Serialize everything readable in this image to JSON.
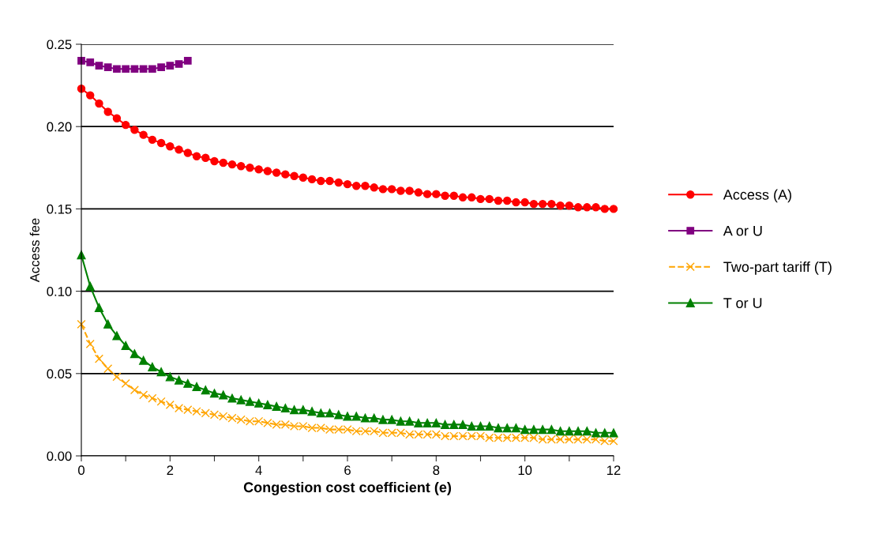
{
  "chart_data": {
    "type": "line",
    "xlabel": "Congestion cost coefficient (e)",
    "ylabel": "Access fee",
    "xlim": [
      0,
      12
    ],
    "xticks": [
      0,
      {
        "value": 1,
        "label": null
      },
      2,
      {
        "value": 3,
        "label": null
      },
      4,
      {
        "value": 5,
        "label": null
      },
      6,
      {
        "value": 7,
        "label": null
      },
      8,
      {
        "value": 9,
        "label": null
      },
      10,
      {
        "value": 11,
        "label": null
      },
      12
    ],
    "ylim": [
      0,
      0.25
    ],
    "yticks": [
      {
        "value": 0,
        "label": "0.00"
      },
      {
        "value": 0.05,
        "label": "0.05"
      },
      {
        "value": 0.1,
        "label": "0.10"
      },
      {
        "value": 0.15,
        "label": "0.15"
      },
      {
        "value": 0.2,
        "label": "0.20"
      },
      {
        "value": 0.25,
        "label": "0.25"
      }
    ],
    "grid": "y",
    "legend": "right",
    "series": [
      {
        "name": "Access (A)",
        "color": "#ff0000",
        "marker": "circle",
        "line_style": "solid",
        "x": [
          0,
          0.2,
          0.4,
          0.6,
          0.8,
          1,
          1.2,
          1.4,
          1.6,
          1.8,
          2,
          2.2,
          2.4,
          2.6,
          2.8,
          3,
          3.2,
          3.4,
          3.6,
          3.8,
          4,
          4.2,
          4.4,
          4.6,
          4.8,
          5,
          5.2,
          5.4,
          5.6,
          5.8,
          6,
          6.2,
          6.4,
          6.6,
          6.8,
          7,
          7.2,
          7.4,
          7.6,
          7.8,
          8,
          8.2,
          8.4,
          8.6,
          8.8,
          9,
          9.2,
          9.4,
          9.6,
          9.8,
          10,
          10.2,
          10.4,
          10.6,
          10.8,
          11,
          11.2,
          11.4,
          11.6,
          11.8,
          12
        ],
        "values": [
          0.223,
          0.219,
          0.214,
          0.209,
          0.205,
          0.201,
          0.198,
          0.195,
          0.192,
          0.19,
          0.188,
          0.186,
          0.184,
          0.182,
          0.181,
          0.179,
          0.178,
          0.177,
          0.176,
          0.175,
          0.174,
          0.173,
          0.172,
          0.171,
          0.17,
          0.169,
          0.168,
          0.167,
          0.167,
          0.166,
          0.165,
          0.164,
          0.164,
          0.163,
          0.162,
          0.162,
          0.161,
          0.161,
          0.16,
          0.159,
          0.159,
          0.158,
          0.158,
          0.157,
          0.157,
          0.156,
          0.156,
          0.155,
          0.155,
          0.154,
          0.154,
          0.153,
          0.153,
          0.153,
          0.152,
          0.152,
          0.151,
          0.151,
          0.151,
          0.15,
          0.15
        ]
      },
      {
        "name": "A or U",
        "color": "#800080",
        "marker": "square",
        "line_style": "solid",
        "x": [
          0,
          0.2,
          0.4,
          0.6,
          0.8,
          1,
          1.2,
          1.4,
          1.6,
          1.8,
          2,
          2.2,
          2.4
        ],
        "values": [
          0.24,
          0.239,
          0.237,
          0.236,
          0.235,
          0.235,
          0.235,
          0.235,
          0.235,
          0.236,
          0.237,
          0.238,
          0.24
        ]
      },
      {
        "name": "Two-part tariff (T)",
        "color": "#ffa500",
        "marker": "cross",
        "line_style": "dashed",
        "x": [
          0,
          0.2,
          0.4,
          0.6,
          0.8,
          1,
          1.2,
          1.4,
          1.6,
          1.8,
          2,
          2.2,
          2.4,
          2.6,
          2.8,
          3,
          3.2,
          3.4,
          3.6,
          3.8,
          4,
          4.2,
          4.4,
          4.6,
          4.8,
          5,
          5.2,
          5.4,
          5.6,
          5.8,
          6,
          6.2,
          6.4,
          6.6,
          6.8,
          7,
          7.2,
          7.4,
          7.6,
          7.8,
          8,
          8.2,
          8.4,
          8.6,
          8.8,
          9,
          9.2,
          9.4,
          9.6,
          9.8,
          10,
          10.2,
          10.4,
          10.6,
          10.8,
          11,
          11.2,
          11.4,
          11.6,
          11.8,
          12
        ],
        "values": [
          0.08,
          0.068,
          0.059,
          0.053,
          0.048,
          0.044,
          0.04,
          0.037,
          0.035,
          0.033,
          0.031,
          0.029,
          0.028,
          0.027,
          0.026,
          0.025,
          0.024,
          0.023,
          0.022,
          0.021,
          0.021,
          0.02,
          0.019,
          0.019,
          0.018,
          0.018,
          0.017,
          0.017,
          0.016,
          0.016,
          0.016,
          0.015,
          0.015,
          0.015,
          0.014,
          0.014,
          0.014,
          0.013,
          0.013,
          0.013,
          0.013,
          0.012,
          0.012,
          0.012,
          0.012,
          0.012,
          0.011,
          0.011,
          0.011,
          0.011,
          0.011,
          0.011,
          0.01,
          0.01,
          0.01,
          0.01,
          0.01,
          0.01,
          0.01,
          0.009,
          0.009
        ]
      },
      {
        "name": "T or U",
        "color": "#008000",
        "marker": "triangle",
        "line_style": "solid",
        "x": [
          0,
          0.2,
          0.4,
          0.6,
          0.8,
          1,
          1.2,
          1.4,
          1.6,
          1.8,
          2,
          2.2,
          2.4,
          2.6,
          2.8,
          3,
          3.2,
          3.4,
          3.6,
          3.8,
          4,
          4.2,
          4.4,
          4.6,
          4.8,
          5,
          5.2,
          5.4,
          5.6,
          5.8,
          6,
          6.2,
          6.4,
          6.6,
          6.8,
          7,
          7.2,
          7.4,
          7.6,
          7.8,
          8,
          8.2,
          8.4,
          8.6,
          8.8,
          9,
          9.2,
          9.4,
          9.6,
          9.8,
          10,
          10.2,
          10.4,
          10.6,
          10.8,
          11,
          11.2,
          11.4,
          11.6,
          11.8,
          12
        ],
        "values": [
          0.122,
          0.103,
          0.09,
          0.08,
          0.073,
          0.067,
          0.062,
          0.058,
          0.054,
          0.051,
          0.048,
          0.046,
          0.044,
          0.042,
          0.04,
          0.038,
          0.037,
          0.035,
          0.034,
          0.033,
          0.032,
          0.031,
          0.03,
          0.029,
          0.028,
          0.028,
          0.027,
          0.026,
          0.026,
          0.025,
          0.024,
          0.024,
          0.023,
          0.023,
          0.022,
          0.022,
          0.021,
          0.021,
          0.02,
          0.02,
          0.02,
          0.019,
          0.019,
          0.019,
          0.018,
          0.018,
          0.018,
          0.017,
          0.017,
          0.017,
          0.016,
          0.016,
          0.016,
          0.016,
          0.015,
          0.015,
          0.015,
          0.015,
          0.014,
          0.014,
          0.014
        ]
      }
    ]
  }
}
